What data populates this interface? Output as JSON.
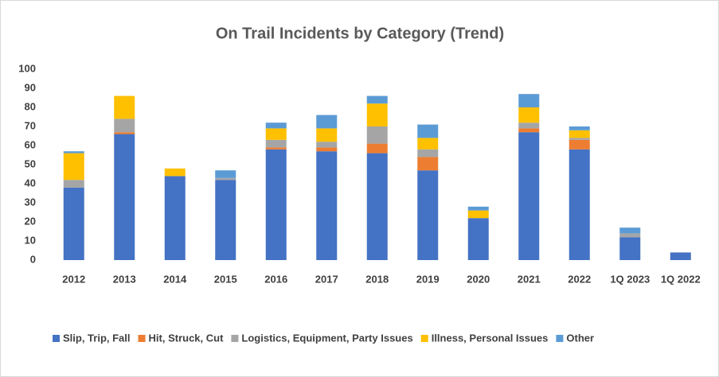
{
  "chart_data": {
    "type": "stacked_bar",
    "title": "On Trail Incidents by Category (Trend)",
    "categories": [
      "2012",
      "2013",
      "2014",
      "2015",
      "2016",
      "2017",
      "2018",
      "2019",
      "2020",
      "2021",
      "2022",
      "1Q 2023",
      "1Q 2022"
    ],
    "series": [
      {
        "name": "Slip, Trip, Fall",
        "color": "#4472c4",
        "values": [
          38,
          66,
          44,
          42,
          58,
          57,
          56,
          47,
          22,
          67,
          58,
          12,
          4
        ]
      },
      {
        "name": "Hit, Struck, Cut",
        "color": "#ed7d31",
        "values": [
          0,
          1,
          0,
          0,
          1,
          2,
          5,
          7,
          0,
          2,
          5,
          0,
          0
        ]
      },
      {
        "name": "Logistics, Equipment, Party Issues",
        "color": "#a5a5a5",
        "values": [
          4,
          7,
          0,
          1,
          4,
          3,
          9,
          4,
          0,
          3,
          1,
          2,
          0
        ]
      },
      {
        "name": "Illness, Personal Issues",
        "color": "#ffc000",
        "values": [
          14,
          12,
          4,
          0,
          6,
          7,
          12,
          6,
          4,
          8,
          4,
          0,
          0
        ]
      },
      {
        "name": "Other",
        "color": "#5b9bd5",
        "values": [
          1,
          0,
          0,
          4,
          3,
          7,
          4,
          7,
          2,
          7,
          2,
          3,
          0
        ]
      }
    ],
    "ylim": [
      0,
      100
    ],
    "yticks": [
      0,
      10,
      20,
      30,
      40,
      50,
      60,
      70,
      80,
      90,
      100
    ],
    "grid": false,
    "legend": "bottom"
  }
}
